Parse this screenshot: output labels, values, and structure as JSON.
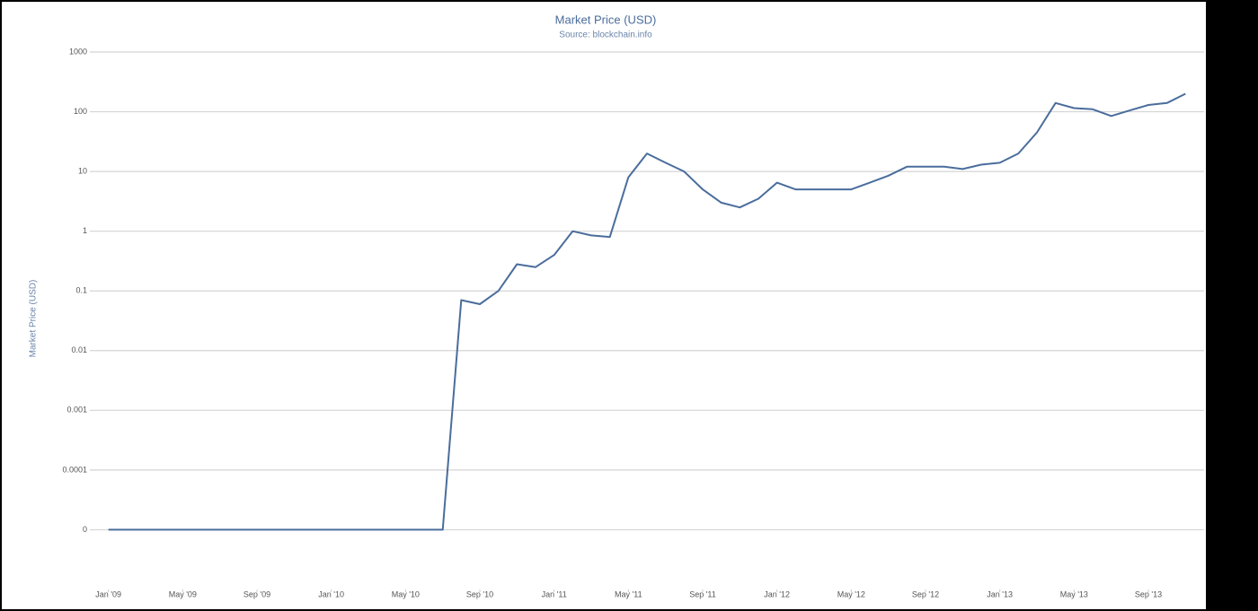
{
  "chart_data": {
    "type": "line",
    "title": "Market Price (USD)",
    "subtitle": "Source: blockchain.info",
    "y_label": "Market Price (USD)",
    "x": [
      "2009-01",
      "2009-02",
      "2009-03",
      "2009-04",
      "2009-05",
      "2009-06",
      "2009-07",
      "2009-08",
      "2009-09",
      "2009-10",
      "2009-11",
      "2009-12",
      "2010-01",
      "2010-02",
      "2010-03",
      "2010-04",
      "2010-05",
      "2010-06",
      "2010-07",
      "2010-08",
      "2010-09",
      "2010-10",
      "2010-11",
      "2010-12",
      "2011-01",
      "2011-02",
      "2011-03",
      "2011-04",
      "2011-05",
      "2011-06",
      "2011-07",
      "2011-08",
      "2011-09",
      "2011-10",
      "2011-11",
      "2011-12",
      "2012-01",
      "2012-02",
      "2012-03",
      "2012-04",
      "2012-05",
      "2012-06",
      "2012-07",
      "2012-08",
      "2012-09",
      "2012-10",
      "2012-11",
      "2012-12",
      "2013-01",
      "2013-02",
      "2013-03",
      "2013-04",
      "2013-05",
      "2013-06",
      "2013-07",
      "2013-08",
      "2013-09",
      "2013-10",
      "2013-11"
    ],
    "values": [
      1e-05,
      1e-05,
      1e-05,
      1e-05,
      1e-05,
      1e-05,
      1e-05,
      1e-05,
      1e-05,
      1e-05,
      1e-05,
      1e-05,
      1e-05,
      1e-05,
      1e-05,
      1e-05,
      1e-05,
      1e-05,
      1e-05,
      0.07,
      0.06,
      0.1,
      0.28,
      0.25,
      0.4,
      1.0,
      0.85,
      0.8,
      8,
      20,
      14,
      10,
      5,
      3,
      2.5,
      3.5,
      6.5,
      5,
      5,
      5,
      5,
      6.5,
      8.5,
      12,
      12,
      12,
      11,
      13,
      14,
      20,
      45,
      140,
      115,
      110,
      85,
      105,
      130,
      140,
      200
    ],
    "color": "#4a6d9c",
    "xlim": [
      "2008-12",
      "2013-12"
    ],
    "xticks": [
      {
        "value": "2009-01",
        "label": "Jan '09"
      },
      {
        "value": "2009-05",
        "label": "May '09"
      },
      {
        "value": "2009-09",
        "label": "Sep '09"
      },
      {
        "value": "2010-01",
        "label": "Jan '10"
      },
      {
        "value": "2010-05",
        "label": "May '10"
      },
      {
        "value": "2010-09",
        "label": "Sep '10"
      },
      {
        "value": "2011-01",
        "label": "Jan '11"
      },
      {
        "value": "2011-05",
        "label": "May '11"
      },
      {
        "value": "2011-09",
        "label": "Sep '11"
      },
      {
        "value": "2012-01",
        "label": "Jan '12"
      },
      {
        "value": "2012-05",
        "label": "May '12"
      },
      {
        "value": "2012-09",
        "label": "Sep '12"
      },
      {
        "value": "2013-01",
        "label": "Jan '13"
      },
      {
        "value": "2013-05",
        "label": "May '13"
      },
      {
        "value": "2013-09",
        "label": "Sep '13"
      }
    ],
    "ylim": [
      1e-06,
      1000
    ],
    "yticks": [
      {
        "value": 1e-05,
        "label": "0"
      },
      0.0001,
      0.001,
      0.01,
      0.1,
      1,
      10,
      100,
      1000
    ],
    "log_y": true,
    "grid": true
  }
}
